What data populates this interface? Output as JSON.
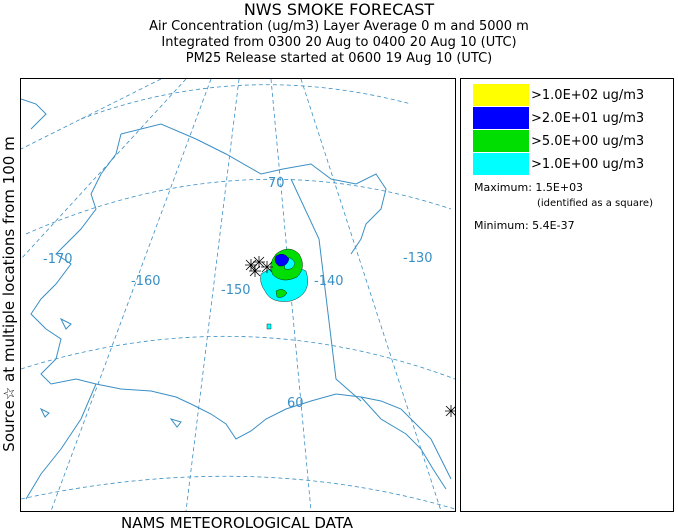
{
  "header": {
    "title": "NWS SMOKE FORECAST",
    "line1": "Air Concentration (ug/m3) Layer Average    0 m and  5000 m",
    "line2": "Integrated from 0300 20 Aug to 0400 20 Aug 10 (UTC)",
    "line3": "PM25 Release started at 0600 19 Aug 10 (UTC)"
  },
  "side_label": "Source☆ at multiple locations   from  100 m",
  "footer": "NAMS METEOROLOGICAL DATA",
  "map": {
    "labels": {
      "lon_170": "-170",
      "lon_160": "-160",
      "lon_150": "-150",
      "lon_140": "-140",
      "lon_130": "-130",
      "lat_70": "70",
      "lat_60": "60"
    },
    "colors": {
      "graticule": "#3a8fc4",
      "coast": "#3a8fc4",
      "source_marker": "#000000"
    }
  },
  "legend": {
    "items": [
      {
        "label": ">1.0E+02 ug/m3",
        "color": "#ffff00"
      },
      {
        "label": ">2.0E+01 ug/m3",
        "color": "#0000ff"
      },
      {
        "label": ">5.0E+00 ug/m3",
        "color": "#00dd00"
      },
      {
        "label": ">1.0E+00 ug/m3",
        "color": "#00ffff"
      }
    ],
    "maximum": "Maximum: 1.5E+03",
    "maximum_note": "(identified as a square)",
    "minimum": "Minimum: 5.4E-37"
  }
}
